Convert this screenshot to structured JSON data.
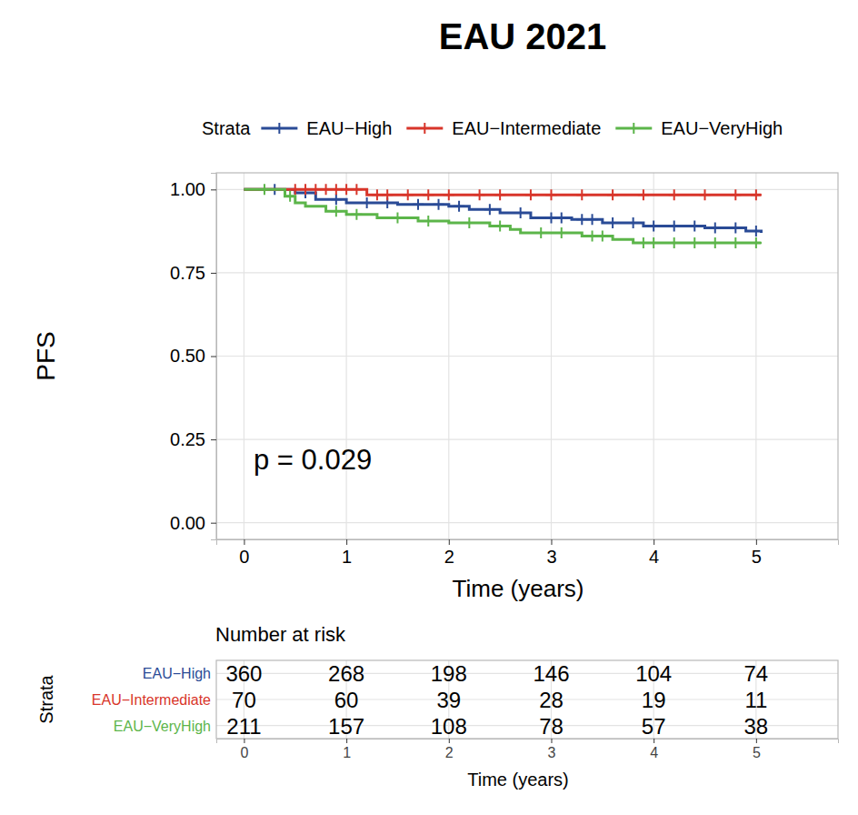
{
  "chart_data": {
    "type": "step",
    "title": "EAU 2021",
    "legend_title": "Strata",
    "x_label": "Time (years)",
    "y_label": "PFS",
    "annotation": "p = 0.029",
    "xlim": [
      -0.27,
      5.8
    ],
    "ylim": [
      -0.05,
      1.05
    ],
    "xticks": [
      0,
      1,
      2,
      3,
      4,
      5
    ],
    "yticks": [
      {
        "value": 0,
        "label": "0.00"
      },
      {
        "value": 0.25,
        "label": "0.25"
      },
      {
        "value": 0.5,
        "label": "0.50"
      },
      {
        "value": 0.75,
        "label": "0.75"
      },
      {
        "value": 1,
        "label": "1.00"
      }
    ],
    "grid": true,
    "legend": "top",
    "marker": "plus",
    "series": [
      {
        "name": "EAU−High",
        "color": "#2a4b96",
        "x": [
          0,
          0.5,
          0.7,
          1.0,
          1.5,
          2.0,
          2.2,
          2.5,
          2.8,
          3.2,
          3.5,
          3.9,
          4.5,
          4.9,
          5.05
        ],
        "values": [
          1,
          0.99,
          0.97,
          0.96,
          0.955,
          0.95,
          0.94,
          0.93,
          0.915,
          0.91,
          0.9,
          0.89,
          0.885,
          0.875,
          0.87
        ],
        "censor_x": [
          0.3,
          0.6,
          0.9,
          1.2,
          1.4,
          1.7,
          1.9,
          2.1,
          2.4,
          2.7,
          3.0,
          3.1,
          3.3,
          3.4,
          3.6,
          3.8,
          4.0,
          4.2,
          4.4,
          4.6,
          4.8,
          5.0
        ],
        "censor_values": [
          1,
          0.99,
          0.97,
          0.96,
          0.96,
          0.955,
          0.955,
          0.95,
          0.94,
          0.93,
          0.915,
          0.915,
          0.91,
          0.91,
          0.9,
          0.9,
          0.89,
          0.89,
          0.89,
          0.885,
          0.885,
          0.875
        ],
        "at_risk": [
          360,
          268,
          198,
          146,
          104,
          74
        ]
      },
      {
        "name": "EAU−Intermediate",
        "color": "#d8352a",
        "x": [
          0,
          1.2,
          5.05
        ],
        "values": [
          1,
          0.984,
          0.984
        ],
        "censor_x": [
          0.5,
          0.6,
          0.7,
          0.8,
          0.9,
          1.0,
          1.1,
          1.3,
          1.4,
          1.6,
          1.8,
          2.0,
          2.3,
          2.5,
          2.8,
          3.0,
          3.3,
          3.6,
          3.9,
          4.2,
          4.5,
          4.8,
          5.0
        ],
        "censor_values": [
          1,
          1,
          1,
          1,
          1,
          1,
          1,
          0.984,
          0.984,
          0.984,
          0.984,
          0.984,
          0.984,
          0.984,
          0.984,
          0.984,
          0.984,
          0.984,
          0.984,
          0.984,
          0.984,
          0.984,
          0.984
        ],
        "at_risk": [
          70,
          60,
          39,
          28,
          19,
          11
        ]
      },
      {
        "name": "EAU−VeryHigh",
        "color": "#5cb54a",
        "x": [
          0,
          0.4,
          0.5,
          0.6,
          0.8,
          1.0,
          1.3,
          1.7,
          2.0,
          2.4,
          2.6,
          2.7,
          3.3,
          3.6,
          3.8,
          5.05
        ],
        "values": [
          1,
          0.98,
          0.96,
          0.95,
          0.935,
          0.925,
          0.915,
          0.905,
          0.9,
          0.89,
          0.88,
          0.87,
          0.86,
          0.85,
          0.84,
          0.84
        ],
        "censor_x": [
          0.2,
          0.45,
          0.9,
          1.1,
          1.5,
          1.8,
          2.2,
          2.5,
          2.9,
          3.1,
          3.4,
          3.5,
          3.9,
          4.0,
          4.2,
          4.4,
          4.6,
          4.8,
          5.0
        ],
        "censor_values": [
          1,
          0.98,
          0.935,
          0.925,
          0.915,
          0.905,
          0.9,
          0.89,
          0.87,
          0.87,
          0.86,
          0.86,
          0.84,
          0.84,
          0.84,
          0.84,
          0.84,
          0.84,
          0.84
        ],
        "at_risk": [
          211,
          157,
          108,
          78,
          57,
          38
        ]
      }
    ],
    "risk_table": {
      "title": "Number at risk",
      "x_label": "Time (years)",
      "y_label": "Strata",
      "xticks": [
        0,
        1,
        2,
        3,
        4,
        5
      ]
    }
  }
}
